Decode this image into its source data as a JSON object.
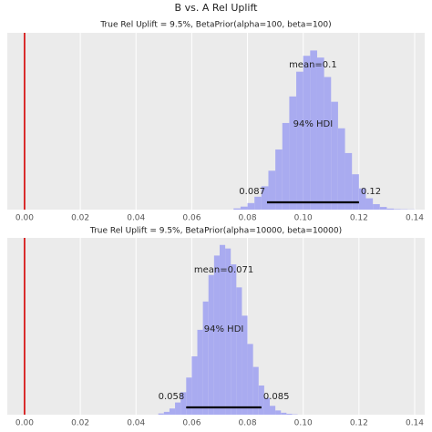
{
  "title": "B vs. A Rel Uplift",
  "chart_data": [
    {
      "type": "histogram",
      "title": "True Rel Uplift = 9.5%, BetaPrior(alpha=100, beta=100)",
      "bins": [
        0.075,
        0.0775,
        0.08,
        0.0825,
        0.085,
        0.0875,
        0.09,
        0.0925,
        0.095,
        0.0975,
        0.1,
        0.1025,
        0.105,
        0.1075,
        0.11,
        0.1125,
        0.115,
        0.1175,
        0.12,
        0.1225,
        0.125,
        0.1275,
        0.13,
        0.1325,
        0.135,
        0.1375,
        0.14
      ],
      "values": [
        0.007,
        0.017,
        0.037,
        0.073,
        0.132,
        0.22,
        0.34,
        0.49,
        0.64,
        0.78,
        0.87,
        0.9,
        0.86,
        0.75,
        0.61,
        0.46,
        0.32,
        0.2,
        0.12,
        0.064,
        0.031,
        0.015,
        0.006,
        0.003,
        0.002,
        0.001
      ],
      "color": "#a9abf0",
      "ref_line": {
        "value": 0,
        "color": "#d40000"
      },
      "mean_label": "mean=0.1",
      "hdi": {
        "label": "94% HDI",
        "low": 0.087,
        "high": 0.12
      },
      "xlim": [
        -0.0062,
        0.1436
      ],
      "ylim": [
        0,
        1
      ],
      "xticks": [
        {
          "value": 0,
          "label": "0.00"
        },
        0.02,
        0.04,
        0.06,
        0.08,
        {
          "value": 0.1,
          "label": "0.10"
        },
        0.12,
        0.14
      ],
      "grid": true
    },
    {
      "type": "histogram",
      "title": "True Rel Uplift = 9.5%, BetaPrior(alpha=10000, beta=10000)",
      "bins": [
        0.048,
        0.05,
        0.052,
        0.054,
        0.056,
        0.058,
        0.06,
        0.062,
        0.064,
        0.066,
        0.068,
        0.07,
        0.072,
        0.074,
        0.076,
        0.078,
        0.08,
        0.082,
        0.084,
        0.086,
        0.088,
        0.09,
        0.092,
        0.094,
        0.096,
        0.098
      ],
      "values": [
        0.007,
        0.016,
        0.035,
        0.069,
        0.127,
        0.21,
        0.33,
        0.48,
        0.64,
        0.79,
        0.9,
        0.96,
        0.94,
        0.85,
        0.72,
        0.56,
        0.4,
        0.27,
        0.165,
        0.095,
        0.05,
        0.024,
        0.011,
        0.005,
        0.002
      ],
      "color": "#a9abf0",
      "ref_line": {
        "value": 0,
        "color": "#d40000"
      },
      "mean_label": "mean=0.071",
      "hdi": {
        "label": "94% HDI",
        "low": 0.058,
        "high": 0.085
      },
      "xlim": [
        -0.0062,
        0.1436
      ],
      "ylim": [
        0,
        1
      ],
      "xticks": [
        {
          "value": 0,
          "label": "0.00"
        },
        0.02,
        0.04,
        0.06,
        0.08,
        {
          "value": 0.1,
          "label": "0.10"
        },
        0.12,
        0.14
      ],
      "grid": true
    }
  ]
}
